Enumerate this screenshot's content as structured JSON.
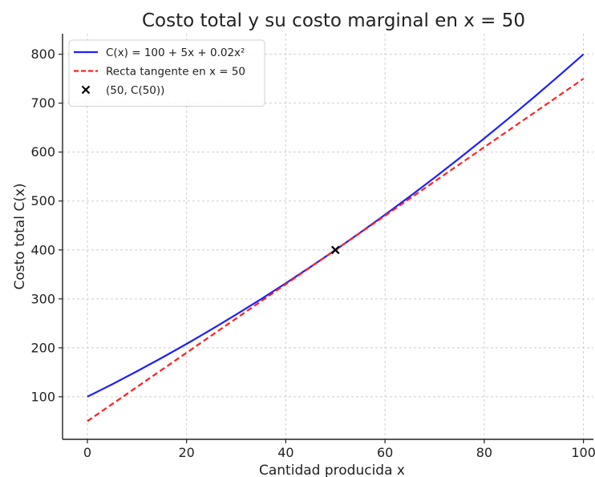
{
  "chart_data": {
    "type": "line",
    "title": "Costo total y su costo marginal en x = 50",
    "xlabel": "Cantidad producida x",
    "ylabel": "Costo total C(x)",
    "xlim": [
      -5,
      102
    ],
    "ylim": [
      13,
      842
    ],
    "x_ticks": [
      0,
      20,
      40,
      60,
      80,
      100
    ],
    "y_ticks": [
      100,
      200,
      300,
      400,
      500,
      600,
      700,
      800
    ],
    "grid": true,
    "legend_position": "top-left",
    "series": [
      {
        "name": "C(x) = 100 + 5x + 0.02x²",
        "style": "solid",
        "color": "#1f1fff",
        "x": [
          0,
          5,
          10,
          15,
          20,
          25,
          30,
          35,
          40,
          45,
          50,
          55,
          60,
          65,
          70,
          75,
          80,
          85,
          90,
          95,
          100
        ],
        "y": [
          100,
          125.5,
          152,
          179.5,
          208,
          237.5,
          268,
          299.5,
          332,
          365.5,
          400,
          435.5,
          472,
          509.5,
          548,
          587.5,
          628,
          669.5,
          712,
          755.5,
          800
        ]
      },
      {
        "name": "Recta tangente en x = 50",
        "style": "dashed",
        "color": "#ff2020",
        "x": [
          0,
          100
        ],
        "y": [
          50,
          750
        ]
      },
      {
        "name": "(50, C(50))",
        "style": "marker",
        "marker": "x",
        "color": "#000000",
        "x": [
          50
        ],
        "y": [
          400
        ]
      }
    ]
  }
}
